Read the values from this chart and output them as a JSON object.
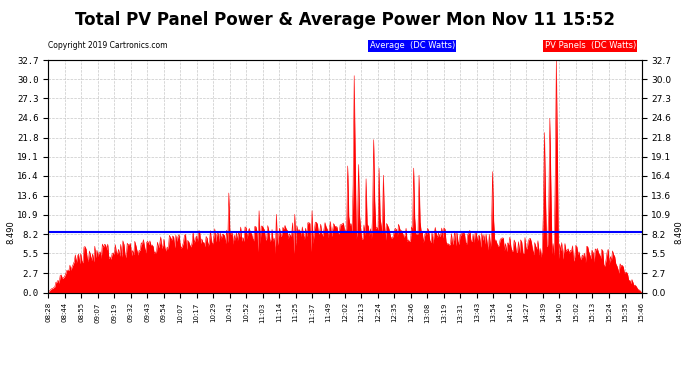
{
  "title": "Total PV Panel Power & Average Power Mon Nov 11 15:52",
  "copyright": "Copyright 2019 Cartronics.com",
  "legend_avg": "Average  (DC Watts)",
  "legend_pv": "PV Panels  (DC Watts)",
  "avg_value": 8.49,
  "y_ticks": [
    0.0,
    2.7,
    5.5,
    8.2,
    10.9,
    13.6,
    16.4,
    19.1,
    21.8,
    24.6,
    27.3,
    30.0,
    32.7
  ],
  "ylim": [
    0.0,
    32.7
  ],
  "x_labels": [
    "08:28",
    "08:44",
    "08:55",
    "09:07",
    "09:19",
    "09:32",
    "09:43",
    "09:54",
    "10:07",
    "10:17",
    "10:29",
    "10:41",
    "10:52",
    "11:03",
    "11:14",
    "11:25",
    "11:37",
    "11:49",
    "12:02",
    "12:13",
    "12:24",
    "12:35",
    "12:46",
    "13:08",
    "13:19",
    "13:31",
    "13:43",
    "13:54",
    "14:16",
    "14:27",
    "14:39",
    "14:50",
    "15:02",
    "15:13",
    "15:24",
    "15:35",
    "15:46"
  ],
  "line_color_avg": "#0000ff",
  "fill_color_pv": "#ff0000",
  "bg_color": "#ffffff",
  "grid_color": "#c8c8c8",
  "title_fontsize": 12,
  "avg_label_color": "#0000ff",
  "pv_label_color": "#ff0000"
}
